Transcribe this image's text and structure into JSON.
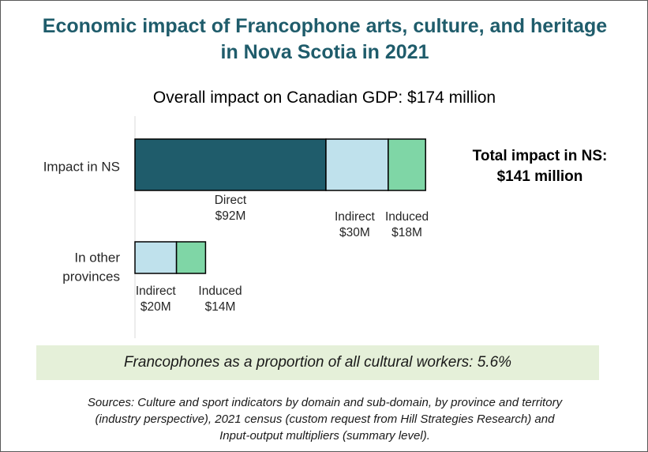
{
  "chart_data": {
    "type": "bar",
    "orientation": "horizontal",
    "stacked": true,
    "title": "Economic impact of Francophone arts, culture, and heritage in Nova Scotia in 2021",
    "subtitle": "Overall impact on Canadian GDP: $174 million",
    "categories": [
      "Impact in NS",
      "In other provinces"
    ],
    "category_lines": [
      [
        "Impact in NS"
      ],
      [
        "In other",
        "provinces"
      ]
    ],
    "series": [
      {
        "name": "Direct",
        "values": [
          92,
          0
        ],
        "color": "#1f5c6b",
        "labels": [
          "$92M",
          ""
        ]
      },
      {
        "name": "Indirect",
        "values": [
          30,
          20
        ],
        "color": "#bfe1ec",
        "labels": [
          "$30M",
          "$20M"
        ]
      },
      {
        "name": "Induced",
        "values": [
          18,
          14
        ],
        "color": "#7fd6a6",
        "labels": [
          "$18M",
          "$14M"
        ]
      }
    ],
    "units": "$ millions",
    "grid": false,
    "legend": "none"
  },
  "annotations": {
    "total_ns": [
      "Total impact in NS:",
      "$141 million"
    ],
    "callout": "Francophones as a proportion of all cultural workers: 5.6%",
    "sources": [
      "Sources: Culture and sport indicators by domain and sub-domain, by province and territory",
      "(industry perspective), 2021 census (custom request from Hill Strategies Research) and",
      "Input-output multipliers (summary level)."
    ]
  }
}
